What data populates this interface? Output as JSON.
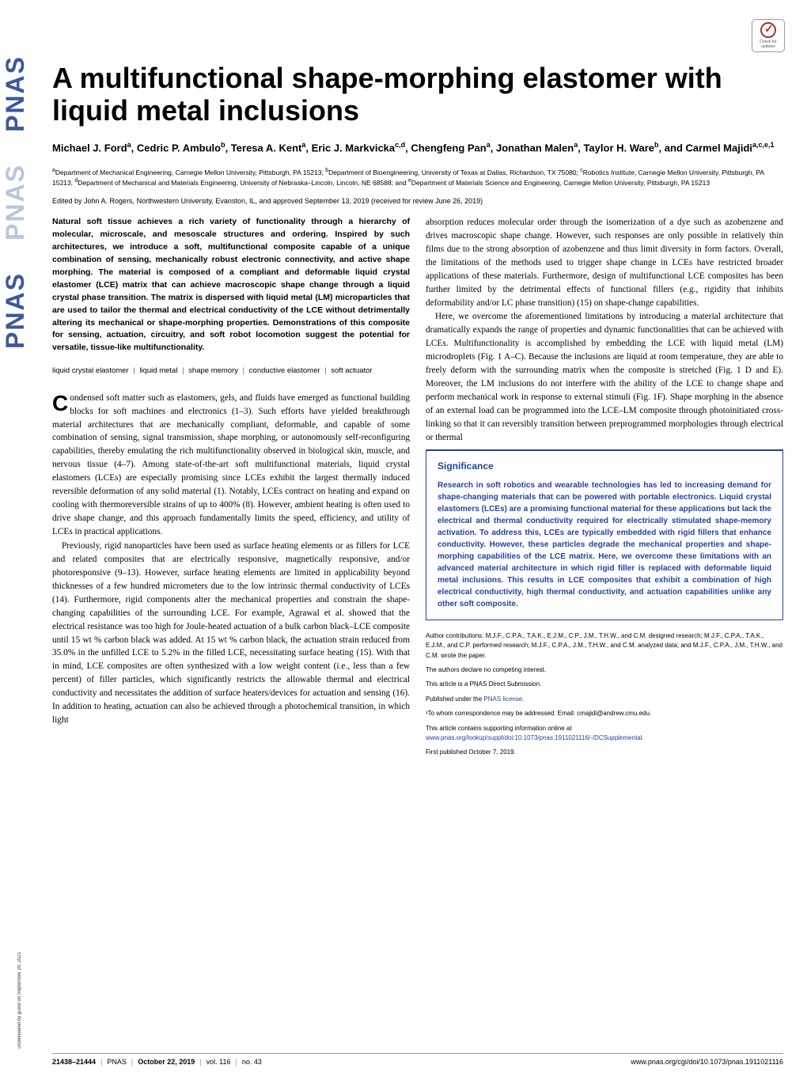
{
  "badge": {
    "line1": "Check for",
    "line2": "updates"
  },
  "sidebar": {
    "letters": [
      "P",
      "N",
      "A",
      "S"
    ],
    "download": "Downloaded by guest on September 29, 2021"
  },
  "title": "A multifunctional shape-morphing elastomer with liquid metal inclusions",
  "authors_html": "Michael J. Ford<sup>a</sup>, Cedric P. Ambulo<sup>b</sup>, Teresa A. Kent<sup>a</sup>, Eric J. Markvicka<sup>c,d</sup>, Chengfeng Pan<sup>a</sup>, Jonathan Malen<sup>a</sup>, Taylor H. Ware<sup>b</sup>, and Carmel Majidi<sup>a,c,e,1</sup>",
  "affiliations_html": "<sup>a</sup>Department of Mechanical Engineering, Carnegie Mellon University, Pittsburgh, PA 15213; <sup>b</sup>Department of Bioengineering, University of Texas at Dallas, Richardson, TX 75080; <sup>c</sup>Robotics Institute, Carnegie Mellon University, Pittsburgh, PA 15213; <sup>d</sup>Department of Mechanical and Materials Engineering, University of Nebraska–Lincoln, Lincoln, NE 68588; and <sup>e</sup>Department of Materials Science and Engineering, Carnegie Mellon University, Pittsburgh, PA 15213",
  "edited": "Edited by John A. Rogers, Northwestern University, Evanston, IL, and approved September 13, 2019 (received for review June 26, 2019)",
  "abstract": "Natural soft tissue achieves a rich variety of functionality through a hierarchy of molecular, microscale, and mesoscale structures and ordering. Inspired by such architectures, we introduce a soft, multifunctional composite capable of a unique combination of sensing, mechanically robust electronic connectivity, and active shape morphing. The material is composed of a compliant and deformable liquid crystal elastomer (LCE) matrix that can achieve macroscopic shape change through a liquid crystal phase transition. The matrix is dispersed with liquid metal (LM) microparticles that are used to tailor the thermal and electrical conductivity of the LCE without detrimentally altering its mechanical or shape-morphing properties. Demonstrations of this composite for sensing, actuation, circuitry, and soft robot locomotion suggest the potential for versatile, tissue-like multifunctionality.",
  "keywords": [
    "liquid crystal elastomer",
    "liquid metal",
    "shape memory",
    "conductive elastomer",
    "soft actuator"
  ],
  "body_left": {
    "p1_first": "C",
    "p1": "ondensed soft matter such as elastomers, gels, and fluids have emerged as functional building blocks for soft machines and electronics (1–3). Such efforts have yielded breakthrough material architectures that are mechanically compliant, deformable, and capable of some combination of sensing, signal transmission, shape morphing, or autonomously self-reconfiguring capabilities, thereby emulating the rich multifunctionality observed in biological skin, muscle, and nervous tissue (4–7). Among state-of-the-art soft multifunctional materials, liquid crystal elastomers (LCEs) are especially promising since LCEs exhibit the largest thermally induced reversible deformation of any solid material (1). Notably, LCEs contract on heating and expand on cooling with thermoreversible strains of up to 400% (8). However, ambient heating is often used to drive shape change, and this approach fundamentally limits the speed, efficiency, and utility of LCEs in practical applications.",
    "p2": "Previously, rigid nanoparticles have been used as surface heating elements or as fillers for LCE and related composites that are electrically responsive, magnetically responsive, and/or photoresponsive (9–13). However, surface heating elements are limited in applicability beyond thicknesses of a few hundred micrometers due to the low intrinsic thermal conductivity of LCEs (14). Furthermore, rigid components alter the mechanical properties and constrain the shape-changing capabilities of the surrounding LCE. For example, Agrawal et al. showed that the electrical resistance was too high for Joule-heated actuation of a bulk carbon black–LCE composite until 15 wt % carbon black was added. At 15 wt % carbon black, the actuation strain reduced from 35.0% in the unfilled LCE to 5.2% in the filled LCE, necessitating surface heating (15). With that in mind, LCE composites are often synthesized with a low weight content (i.e., less than a few percent) of filler particles, which significantly restricts the allowable thermal and electrical conductivity and necessitates the addition of surface heaters/devices for actuation and sensing (16). In addition to heating, actuation can also be achieved through a photochemical transition, in which light"
  },
  "body_right": {
    "p1": "absorption reduces molecular order through the isomerization of a dye such as azobenzene and drives macroscopic shape change. However, such responses are only possible in relatively thin films due to the strong absorption of azobenzene and thus limit diversity in form factors. Overall, the limitations of the methods used to trigger shape change in LCEs have restricted broader applications of these materials. Furthermore, design of multifunctional LCE composites has been further limited by the detrimental effects of functional fillers (e.g., rigidity that inhibits deformability and/or LC phase transition) (15) on shape-change capabilities.",
    "p2": "Here, we overcome the aforementioned limitations by introducing a material architecture that dramatically expands the range of properties and dynamic functionalities that can be achieved with LCEs. Multifunctionality is accomplished by embedding the LCE with liquid metal (LM) microdroplets (Fig. 1 A–C). Because the inclusions are liquid at room temperature, they are able to freely deform with the surrounding matrix when the composite is stretched (Fig. 1 D and E). Moreover, the LM inclusions do not interfere with the ability of the LCE to change shape and perform mechanical work in response to external stimuli (Fig. 1F). Shape morphing in the absence of an external load can be programmed into the LCE–LM composite through photoinitiated cross-linking so that it can reversibly transition between preprogrammed morphologies through electrical or thermal"
  },
  "significance": {
    "title": "Significance",
    "body": "Research in soft robotics and wearable technologies has led to increasing demand for shape-changing materials that can be powered with portable electronics. Liquid crystal elastomers (LCEs) are a promising functional material for these applications but lack the electrical and thermal conductivity required for electrically stimulated shape-memory activation. To address this, LCEs are typically embedded with rigid fillers that enhance conductivity. However, these particles degrade the mechanical properties and shape-morphing capabilities of the LCE matrix. Here, we overcome these limitations with an advanced material architecture in which rigid filler is replaced with deformable liquid metal inclusions. This results in LCE composites that exhibit a combination of high electrical conductivity, high thermal conductivity, and actuation capabilities unlike any other soft composite."
  },
  "footnotes": {
    "contrib": "Author contributions: M.J.F., C.P.A., T.A.K., E.J.M., C.P., J.M., T.H.W., and C.M. designed research; M.J.F., C.P.A., T.A.K., E.J.M., and C.P. performed research; M.J.F., C.P.A., J.M., T.H.W., and C.M. analyzed data; and M.J.F., C.P.A., J.M., T.H.W., and C.M. wrote the paper.",
    "compete": "The authors declare no competing interest.",
    "direct": "This article is a PNAS Direct Submission.",
    "license_pre": "Published under the ",
    "license_link": "PNAS license.",
    "corr_pre": "¹To whom correspondence may be addressed. Email: ",
    "corr_email": "cmajidi@andrew.cmu.edu.",
    "supp_pre": "This article contains supporting information online at ",
    "supp_link": "www.pnas.org/lookup/suppl/doi:10.1073/pnas.1911021116/-/DCSupplemental.",
    "pub": "First published October 7, 2019."
  },
  "footer": {
    "pages": "21438–21444",
    "journal": "PNAS",
    "date": "October 22, 2019",
    "vol": "vol. 116",
    "no": "no. 43",
    "doi": "www.pnas.org/cgi/doi/10.1073/pnas.1911021116"
  },
  "colors": {
    "pnas_blue": "#2242a0",
    "pnas_logo": "#3b5998",
    "pnas_logo_light": "#b8c5e0",
    "text": "#000000",
    "bg": "#ffffff"
  }
}
